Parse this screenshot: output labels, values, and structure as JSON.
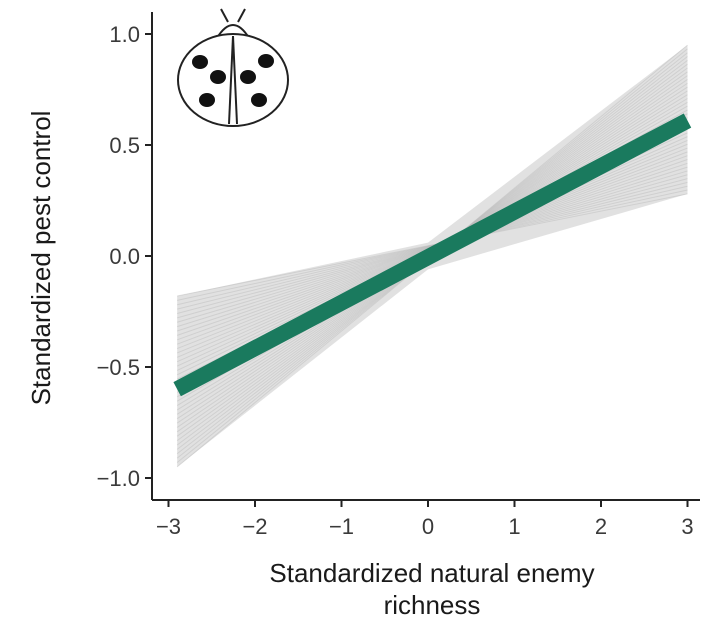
{
  "chart_data": {
    "type": "line",
    "title": "",
    "xlabel_lines": [
      "Standardized natural enemy",
      "richness"
    ],
    "ylabel": "Standardized pest control",
    "xlim": [
      -3.1,
      3.1
    ],
    "ylim": [
      -1.08,
      1.1
    ],
    "x_ticks": [
      -3,
      -2,
      -1,
      0,
      1,
      2,
      3
    ],
    "x_tick_labels": [
      "−3",
      "−2",
      "−1",
      "0",
      "1",
      "2",
      "3"
    ],
    "y_ticks": [
      -1.0,
      -0.5,
      0.0,
      0.5,
      1.0
    ],
    "y_tick_labels": [
      "−1.0",
      "−0.5",
      "0.0",
      "0.5",
      "1.0"
    ],
    "grid": false,
    "series": [
      {
        "x": [
          -2.9,
          3.0
        ],
        "y": [
          -0.6,
          0.61
        ],
        "color": "#1a7a5e"
      }
    ],
    "uncertainty_band": {
      "x": [
        -2.9,
        0,
        3.0
      ],
      "upper": [
        -0.18,
        0.06,
        0.95
      ],
      "lower": [
        -0.95,
        -0.06,
        0.28
      ],
      "color": "#c8c8c8"
    },
    "icon": "ladybug-icon"
  }
}
